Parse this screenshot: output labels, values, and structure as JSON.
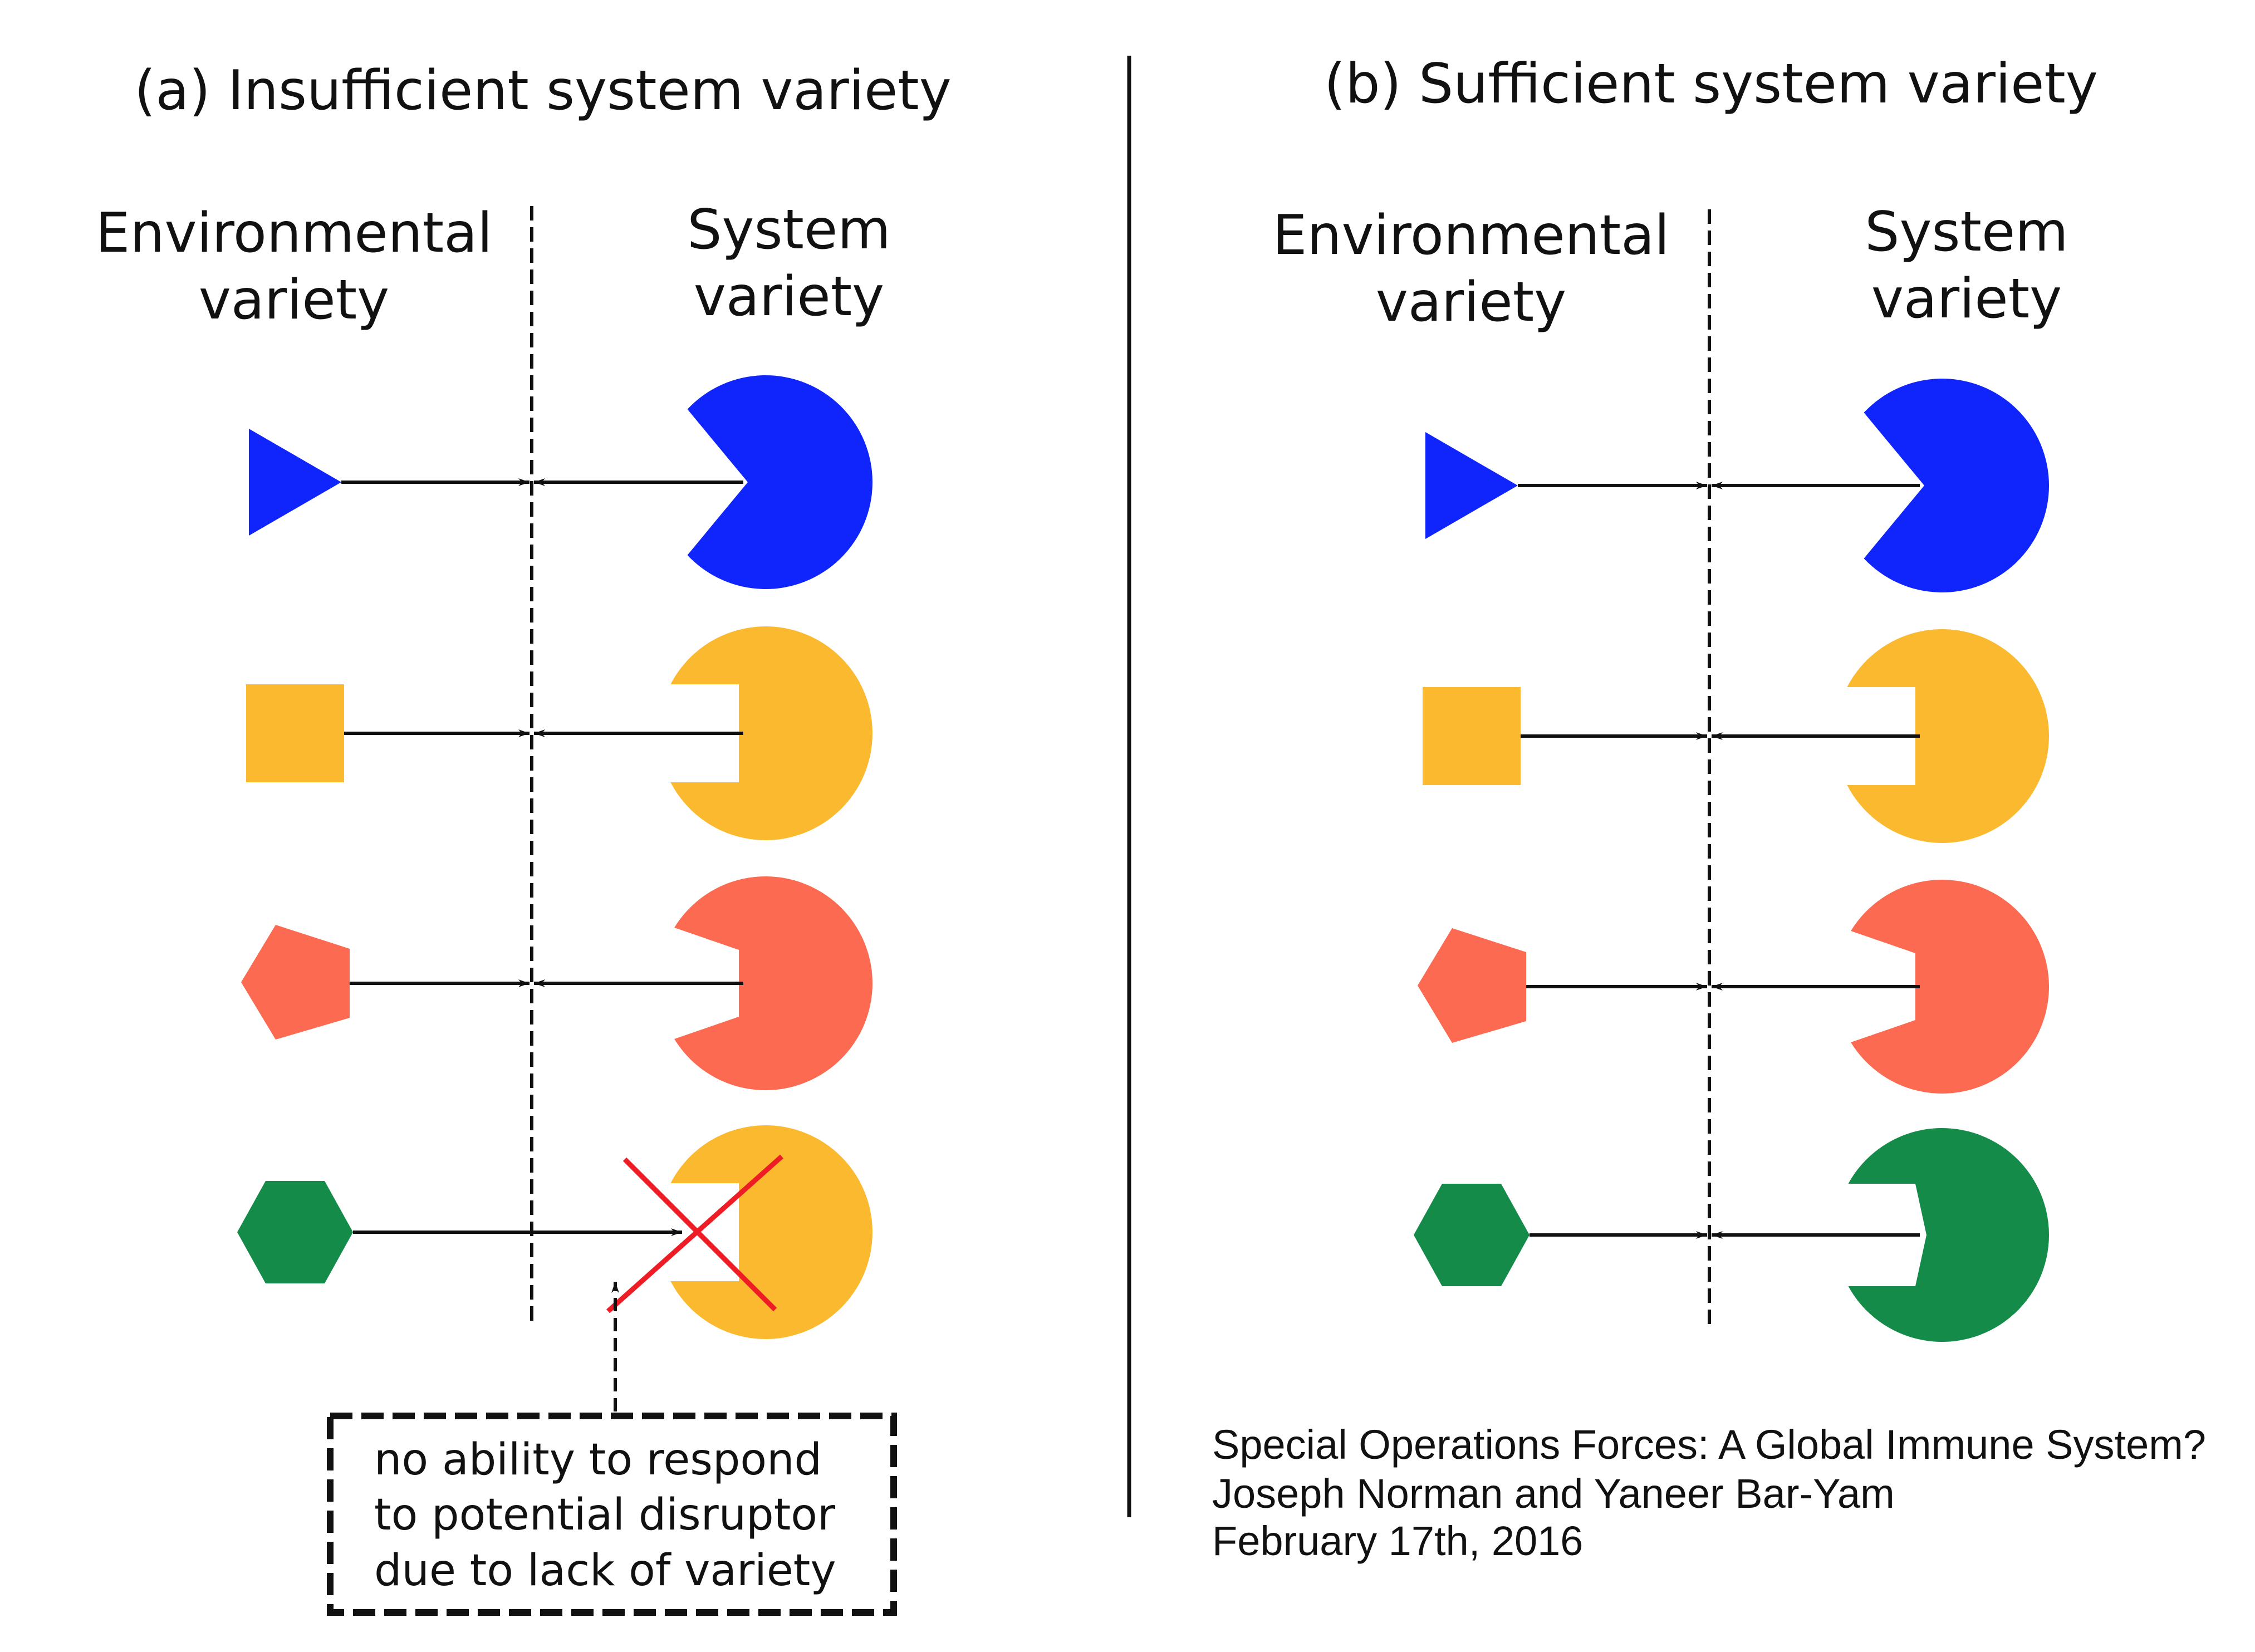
{
  "panel_a": {
    "title": "(a) Insufficient system variety",
    "env_header": [
      "Environmental",
      "variety"
    ],
    "sys_header": [
      "System",
      "variety"
    ],
    "note": [
      "no ability to respond",
      "to potential disruptor",
      "due to lack of variety"
    ]
  },
  "panel_b": {
    "title": "(b) Sufficient system variety",
    "env_header": [
      "Environmental",
      "variety"
    ],
    "sys_header": [
      "System",
      "variety"
    ]
  },
  "caption": [
    "Special Operations Forces: A Global Immune System?",
    "Joseph Norman and Yaneer Bar-Yam",
    "February  17th, 2016"
  ],
  "colors": {
    "blue": "#0f25fb",
    "yellow": "#fbb930",
    "red": "#fb6a51",
    "green": "#158b49",
    "cross": "#ee1c24",
    "ink": "#111111"
  },
  "rows_a": [
    {
      "env_shape": "triangle",
      "env_color": "blue",
      "sys_notch": "triangle",
      "sys_color": "blue",
      "matched": true
    },
    {
      "env_shape": "square",
      "env_color": "yellow",
      "sys_notch": "square",
      "sys_color": "yellow",
      "matched": true
    },
    {
      "env_shape": "pentagon",
      "env_color": "red",
      "sys_notch": "pentagon",
      "sys_color": "red",
      "matched": true
    },
    {
      "env_shape": "hexagon",
      "env_color": "green",
      "sys_notch": "square",
      "sys_color": "yellow",
      "matched": false
    }
  ],
  "rows_b": [
    {
      "env_shape": "triangle",
      "env_color": "blue",
      "sys_notch": "triangle",
      "sys_color": "blue",
      "matched": true
    },
    {
      "env_shape": "square",
      "env_color": "yellow",
      "sys_notch": "square",
      "sys_color": "yellow",
      "matched": true
    },
    {
      "env_shape": "pentagon",
      "env_color": "red",
      "sys_notch": "pentagon",
      "sys_color": "red",
      "matched": true
    },
    {
      "env_shape": "hexagon",
      "env_color": "green",
      "sys_notch": "hexagon",
      "sys_color": "green",
      "matched": true
    }
  ]
}
